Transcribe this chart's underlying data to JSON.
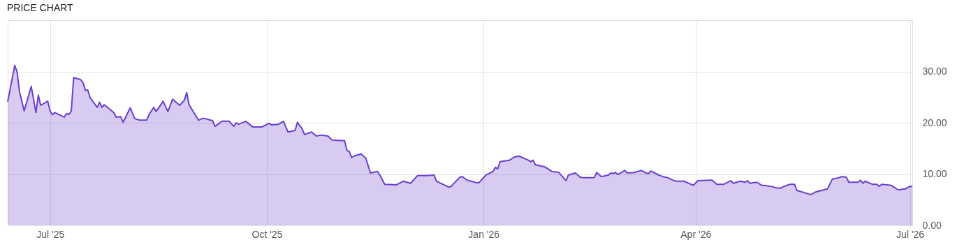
{
  "chart_data": {
    "type": "area",
    "title": "PRICE CHART",
    "x": [
      "2025-06-13",
      "2025-06-16",
      "2025-06-17",
      "2025-06-18",
      "2025-06-20",
      "2025-06-23",
      "2025-06-25",
      "2025-06-26",
      "2025-06-27",
      "2025-06-30",
      "2025-07-01",
      "2025-07-02",
      "2025-07-03",
      "2025-07-07",
      "2025-07-08",
      "2025-07-09",
      "2025-07-10",
      "2025-07-11",
      "2025-07-14",
      "2025-07-15",
      "2025-07-16",
      "2025-07-17",
      "2025-07-18",
      "2025-07-21",
      "2025-07-22",
      "2025-07-23",
      "2025-07-24",
      "2025-07-28",
      "2025-07-29",
      "2025-07-31",
      "2025-08-01",
      "2025-08-04",
      "2025-08-06",
      "2025-08-08",
      "2025-08-11",
      "2025-08-12",
      "2025-08-14",
      "2025-08-15",
      "2025-08-18",
      "2025-08-20",
      "2025-08-22",
      "2025-08-25",
      "2025-08-27",
      "2025-08-28",
      "2025-08-29",
      "2025-09-02",
      "2025-09-04",
      "2025-09-08",
      "2025-09-09",
      "2025-09-12",
      "2025-09-15",
      "2025-09-17",
      "2025-09-18",
      "2025-09-19",
      "2025-09-22",
      "2025-09-25",
      "2025-09-29",
      "2025-10-02",
      "2025-10-03",
      "2025-10-06",
      "2025-10-08",
      "2025-10-10",
      "2025-10-13",
      "2025-10-14",
      "2025-10-16",
      "2025-10-17",
      "2025-10-20",
      "2025-10-22",
      "2025-10-24",
      "2025-10-27",
      "2025-10-28",
      "2025-10-29",
      "2025-11-03",
      "2025-11-04",
      "2025-11-05",
      "2025-11-06",
      "2025-11-07",
      "2025-11-10",
      "2025-11-12",
      "2025-11-14",
      "2025-11-17",
      "2025-11-18",
      "2025-11-20",
      "2025-11-25",
      "2025-11-28",
      "2025-12-01",
      "2025-12-04",
      "2025-12-08",
      "2025-12-11",
      "2025-12-12",
      "2025-12-17",
      "2025-12-18",
      "2025-12-22",
      "2025-12-23",
      "2025-12-25",
      "2025-12-29",
      "2025-12-30",
      "2026-01-02",
      "2026-01-05",
      "2026-01-06",
      "2026-01-07",
      "2026-01-08",
      "2026-01-12",
      "2026-01-14",
      "2026-01-16",
      "2026-01-20",
      "2026-01-21",
      "2026-01-22",
      "2026-01-23",
      "2026-01-27",
      "2026-01-30",
      "2026-02-02",
      "2026-02-05",
      "2026-02-06",
      "2026-02-09",
      "2026-02-11",
      "2026-02-12",
      "2026-02-17",
      "2026-02-18",
      "2026-02-20",
      "2026-02-23",
      "2026-02-24",
      "2026-02-25",
      "2026-02-26",
      "2026-02-27",
      "2026-03-02",
      "2026-03-03",
      "2026-03-06",
      "2026-03-09",
      "2026-03-11",
      "2026-03-12",
      "2026-03-13",
      "2026-03-16",
      "2026-03-18",
      "2026-03-20",
      "2026-03-23",
      "2026-03-24",
      "2026-03-27",
      "2026-03-31",
      "2026-04-02",
      "2026-04-08",
      "2026-04-10",
      "2026-04-13",
      "2026-04-16",
      "2026-04-17",
      "2026-04-20",
      "2026-04-22",
      "2026-04-23",
      "2026-04-24",
      "2026-04-27",
      "2026-04-29",
      "2026-04-30",
      "2026-05-04",
      "2026-05-05",
      "2026-05-07",
      "2026-05-08",
      "2026-05-11",
      "2026-05-13",
      "2026-05-14",
      "2026-05-19",
      "2026-05-20",
      "2026-05-22",
      "2026-05-27",
      "2026-05-29",
      "2026-06-01",
      "2026-06-02",
      "2026-06-04",
      "2026-06-05",
      "2026-06-09",
      "2026-06-10",
      "2026-06-11",
      "2026-06-12",
      "2026-06-15",
      "2026-06-17",
      "2026-06-18",
      "2026-06-19",
      "2026-06-23",
      "2026-06-26",
      "2026-06-29",
      "2026-07-01",
      "2026-07-02"
    ],
    "series": [
      {
        "color": "#6a3fcf",
        "values": [
          24.1,
          31.2,
          29.9,
          26.1,
          22.3,
          27.1,
          22.0,
          25.4,
          23.4,
          24.2,
          22.3,
          21.6,
          22.0,
          21.1,
          21.8,
          21.6,
          22.3,
          28.8,
          28.4,
          27.8,
          26.3,
          26.4,
          24.9,
          23.0,
          24.0,
          23.0,
          23.5,
          22.0,
          21.1,
          21.2,
          20.1,
          22.9,
          20.8,
          20.5,
          20.5,
          21.6,
          23.0,
          22.2,
          24.2,
          22.2,
          24.6,
          23.4,
          24.4,
          25.9,
          23.5,
          20.5,
          20.9,
          20.4,
          19.3,
          20.3,
          20.3,
          19.3,
          20.0,
          19.7,
          20.3,
          19.2,
          19.2,
          19.9,
          19.6,
          19.7,
          20.3,
          18.2,
          18.5,
          20.1,
          18.8,
          17.7,
          18.2,
          17.4,
          17.6,
          17.4,
          16.9,
          16.6,
          16.5,
          14.6,
          14.4,
          13.2,
          13.5,
          13.9,
          13.1,
          10.2,
          10.5,
          9.8,
          8.0,
          7.9,
          8.6,
          8.2,
          9.7,
          9.7,
          9.8,
          8.6,
          7.5,
          7.5,
          9.4,
          9.5,
          8.8,
          8.3,
          8.3,
          9.8,
          10.5,
          11.3,
          11.0,
          12.4,
          12.7,
          13.3,
          13.5,
          12.7,
          12.4,
          12.7,
          11.8,
          11.4,
          10.5,
          10.3,
          8.7,
          9.8,
          10.2,
          9.4,
          9.3,
          9.3,
          10.3,
          9.5,
          9.8,
          10.2,
          10.1,
          10.3,
          9.9,
          10.7,
          10.2,
          10.3,
          10.7,
          10.2,
          10.1,
          10.6,
          9.9,
          9.5,
          9.3,
          8.7,
          8.6,
          8.6,
          7.8,
          8.7,
          8.8,
          8.0,
          8.0,
          8.7,
          8.2,
          8.6,
          8.4,
          8.7,
          8.2,
          8.4,
          7.8,
          7.8,
          7.5,
          7.3,
          7.2,
          7.5,
          8.0,
          8.0,
          6.8,
          6.1,
          6.0,
          6.5,
          7.1,
          9.0,
          9.3,
          9.5,
          9.4,
          8.4,
          8.4,
          8.8,
          8.2,
          8.6,
          8.0,
          8.0,
          7.6,
          8.0,
          7.8,
          6.9,
          7.1,
          7.6,
          7.6
        ]
      }
    ],
    "xlim": [
      "2025-06-13",
      "2026-07-02"
    ],
    "xticks": [
      {
        "value": "2025-07-01",
        "label": "Jul '25"
      },
      {
        "value": "2025-10-01",
        "label": "Oct '25"
      },
      {
        "value": "2026-01-01",
        "label": "Jan '26"
      },
      {
        "value": "2026-04-01",
        "label": "Apr '26"
      },
      {
        "value": "2026-07-01",
        "label": "Jul '26"
      }
    ],
    "ylim": [
      0,
      40
    ],
    "yticks": [
      {
        "value": 0,
        "label": "0.00"
      },
      {
        "value": 10,
        "label": "10.00"
      },
      {
        "value": 20,
        "label": "20.00"
      },
      {
        "value": 30,
        "label": "30.00"
      }
    ],
    "grid": true
  }
}
